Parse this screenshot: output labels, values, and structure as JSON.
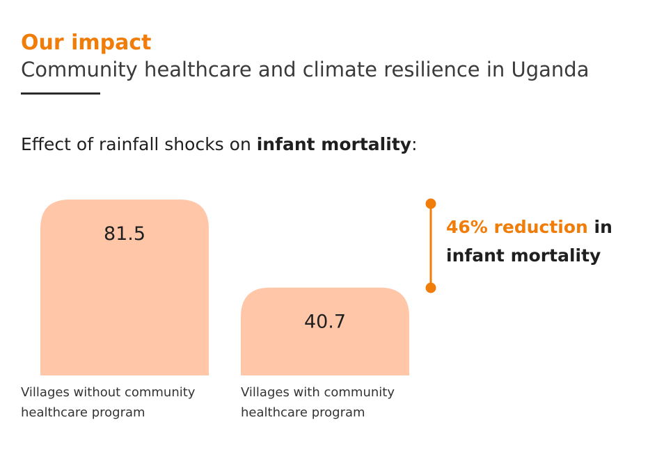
{
  "header": {
    "eyebrow": "Our impact",
    "title": "Community healthcare and climate resilience in Uganda"
  },
  "subtitle": {
    "prefix": "Effect of rainfall shocks on ",
    "emphasis": "infant mortality",
    "suffix": ":"
  },
  "callout": {
    "highlight": "46% reduction",
    "rest_line1": " in",
    "rest_line2": "infant mortality"
  },
  "colors": {
    "accent": "#F07D0A",
    "bar": "#FFC6A8",
    "text": "#2b2b2b"
  },
  "chart_data": {
    "type": "bar",
    "categories": [
      "Villages without community healthcare program",
      "Villages with community healthcare program"
    ],
    "category_lines": [
      [
        "Villages without community",
        "healthcare program"
      ],
      [
        "Villages with community",
        "healthcare program"
      ]
    ],
    "values": [
      81.5,
      40.7
    ],
    "value_labels": [
      "81.5",
      "40.7"
    ],
    "ylim": [
      0,
      81.5
    ],
    "title": "",
    "xlabel": "",
    "ylabel": "",
    "grid": false,
    "legend": "none"
  }
}
